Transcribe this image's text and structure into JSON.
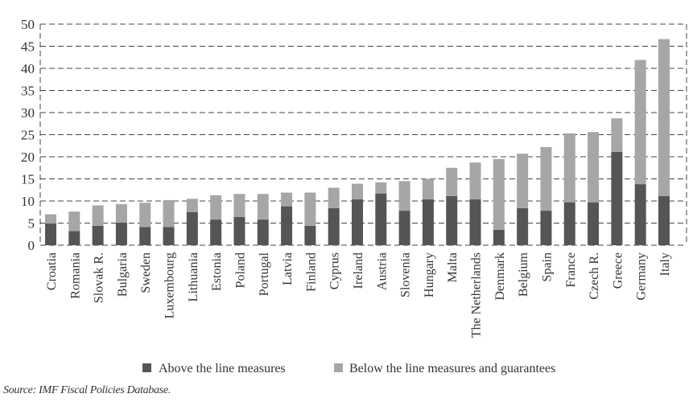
{
  "chart_data": {
    "type": "bar",
    "stacked": true,
    "title": "",
    "xlabel": "",
    "ylabel": "",
    "ylim": [
      0,
      50
    ],
    "yticks": [
      0,
      5,
      10,
      15,
      20,
      25,
      30,
      35,
      40,
      45,
      50
    ],
    "grid": true,
    "grid_style": "dashed",
    "legend_position": "bottom",
    "categories": [
      "Croatia",
      "Romania",
      "Slovak R.",
      "Bulgaria",
      "Sweden",
      "Luxembourg",
      "Lithuania",
      "Estonia",
      "Poland",
      "Portugal",
      "Latvia",
      "Finland",
      "Cyprus",
      "Ireland",
      "Austria",
      "Slovenia",
      "Hungary",
      "Malta",
      "The Netherlands",
      "Denmark",
      "Belgium",
      "Spain",
      "France",
      "Czech R.",
      "Greece",
      "Germany",
      "Italy"
    ],
    "series": [
      {
        "name": "Above the line measures",
        "color": "#555555",
        "values": [
          4.9,
          3.2,
          4.4,
          5.1,
          4.1,
          4.1,
          7.5,
          5.8,
          6.4,
          5.8,
          8.8,
          4.4,
          8.4,
          10.4,
          11.7,
          7.8,
          10.4,
          11.1,
          10.4,
          3.5,
          8.4,
          7.8,
          9.7,
          9.7,
          21.1,
          13.8,
          11.1
        ]
      },
      {
        "name": "Below the line measures and guarantees",
        "color": "#a6a6a6",
        "values": [
          2.1,
          4.4,
          4.6,
          4.2,
          5.5,
          6.1,
          3.0,
          5.5,
          5.2,
          5.8,
          3.1,
          7.5,
          4.6,
          3.5,
          2.5,
          6.7,
          4.6,
          6.4,
          8.3,
          16.0,
          12.3,
          14.4,
          15.6,
          15.9,
          7.6,
          28.1,
          35.5
        ]
      }
    ],
    "totals": [
      7.0,
      7.6,
      9.0,
      9.3,
      9.6,
      10.2,
      10.5,
      11.3,
      11.6,
      11.6,
      11.9,
      11.9,
      13.0,
      13.9,
      14.2,
      14.5,
      15.0,
      17.5,
      18.7,
      19.5,
      20.7,
      22.2,
      25.3,
      25.6,
      28.7,
      41.9,
      46.6
    ]
  },
  "legend": {
    "items": [
      {
        "label": "Above the line measures",
        "color": "#555555"
      },
      {
        "label": "Below the line measures and guarantees",
        "color": "#a6a6a6"
      }
    ]
  },
  "source": "Source: IMF Fiscal Policies Database."
}
